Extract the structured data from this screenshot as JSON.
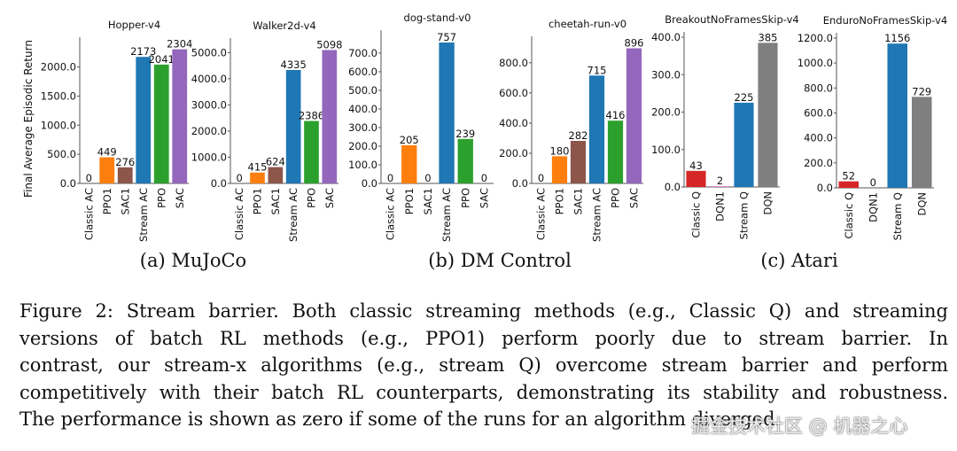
{
  "figure": {
    "ylabel": "Final Average Episodic Return",
    "subcaptions": [
      "(a) MuJoCo",
      "(b) DM Control",
      "(c) Atari"
    ],
    "caption_lines": [
      "Figure 2: Stream barrier. Both classic streaming methods (e.g., Classic Q) and streaming",
      "versions of batch RL methods (e.g., PPO1) perform poorly due to stream barrier. In",
      "contrast, our stream-x algorithms (e.g., stream Q) overcome stream barrier and perform",
      "competitively with their batch RL counterparts, demonstrating its stability and robustness.",
      "The performance is shown as zero if some of the runs for an algorithm diverged."
    ],
    "watermark": "掘金技术社区 @ 机器之心"
  },
  "colors": {
    "Classic AC": "#1f77b4",
    "PPO1": "#ff7f0e",
    "SAC1": "#8c564b",
    "Stream AC": "#1f77b4",
    "PPO": "#2ca02c",
    "SAC": "#9467bd",
    "Classic Q": "#d62728",
    "DQN1": "#e377c2",
    "Stream Q": "#1f77b4",
    "DQN": "#7f7f7f"
  },
  "chart_data": [
    {
      "type": "bar",
      "title": "Hopper-v4",
      "group": "(a) MuJoCo",
      "categories": [
        "Classic AC",
        "PPO1",
        "SAC1",
        "Stream AC",
        "PPO",
        "SAC"
      ],
      "values": [
        0,
        449,
        276,
        2173,
        2041,
        2304
      ],
      "value_labels": [
        "0",
        "449",
        "276",
        "2173",
        "2041",
        "2304"
      ],
      "yticks": [
        0,
        500,
        1000,
        1500,
        2000
      ],
      "ytick_labels": [
        "0.0",
        "500.0",
        "1000.0",
        "1500.0",
        "2000.0"
      ],
      "ylim": [
        0,
        2420
      ],
      "xlabel": "",
      "ylabel": "Final Average Episodic Return",
      "grid": false
    },
    {
      "type": "bar",
      "title": "Walker2d-v4",
      "group": "(a) MuJoCo",
      "categories": [
        "Classic AC",
        "PPO1",
        "SAC1",
        "Stream AC",
        "PPO",
        "SAC"
      ],
      "values": [
        0,
        415,
        624,
        4335,
        2386,
        5098
      ],
      "value_labels": [
        "0",
        "415",
        "624",
        "4335",
        "2386",
        "5098"
      ],
      "yticks": [
        0,
        1000,
        2000,
        3000,
        4000,
        5000
      ],
      "ytick_labels": [
        "0.0",
        "1000.0",
        "2000.0",
        "3000.0",
        "4000.0",
        "5000.0"
      ],
      "ylim": [
        0,
        5350
      ],
      "xlabel": "",
      "ylabel": "",
      "grid": false
    },
    {
      "type": "bar",
      "title": "dog-stand-v0",
      "group": "(b) DM Control",
      "categories": [
        "Classic AC",
        "PPO1",
        "SAC1",
        "Stream AC",
        "PPO",
        "SAC"
      ],
      "values": [
        0,
        205,
        0,
        757,
        239,
        0
      ],
      "value_labels": [
        "0",
        "205",
        "0",
        "757",
        "239",
        "0"
      ],
      "yticks": [
        0,
        100,
        200,
        300,
        400,
        500,
        600,
        700
      ],
      "ytick_labels": [
        "0.0",
        "100.0",
        "200.0",
        "300.0",
        "400.0",
        "500.0",
        "600.0",
        "700.0"
      ],
      "ylim": [
        0,
        795
      ],
      "xlabel": "",
      "ylabel": "",
      "grid": false
    },
    {
      "type": "bar",
      "title": "cheetah-run-v0",
      "group": "(b) DM Control",
      "categories": [
        "Classic AC",
        "PPO1",
        "SAC1",
        "Stream AC",
        "PPO",
        "SAC"
      ],
      "values": [
        0,
        180,
        282,
        715,
        416,
        896
      ],
      "value_labels": [
        "0",
        "180",
        "282",
        "715",
        "416",
        "896"
      ],
      "yticks": [
        0,
        200,
        400,
        600,
        800
      ],
      "ytick_labels": [
        "0.0",
        "200.0",
        "400.0",
        "600.0",
        "800.0"
      ],
      "ylim": [
        0,
        940
      ],
      "xlabel": "",
      "ylabel": "",
      "grid": false
    },
    {
      "type": "bar",
      "title": "BreakoutNoFramesSkip-v4",
      "group": "(c) Atari",
      "categories": [
        "Classic Q",
        "DQN1",
        "Stream Q",
        "DQN"
      ],
      "values": [
        43,
        2,
        225,
        385
      ],
      "value_labels": [
        "43",
        "2",
        "225",
        "385"
      ],
      "yticks": [
        0,
        100,
        200,
        300,
        400
      ],
      "ytick_labels": [
        "0.0",
        "100.0",
        "200.0",
        "300.0",
        "400.0"
      ],
      "ylim": [
        0,
        400
      ],
      "xlabel": "",
      "ylabel": "",
      "grid": false
    },
    {
      "type": "bar",
      "title": "EnduroNoFramesSkip-v4",
      "group": "(c) Atari",
      "categories": [
        "Classic Q",
        "DQN1",
        "Stream Q",
        "DQN"
      ],
      "values": [
        52,
        0,
        1156,
        729
      ],
      "value_labels": [
        "52",
        "0",
        "1156",
        "729"
      ],
      "yticks": [
        0,
        200,
        400,
        600,
        800,
        1000,
        1200
      ],
      "ytick_labels": [
        "0.0",
        "200.0",
        "400.0",
        "600.0",
        "800.0",
        "1000.0",
        "1200.0"
      ],
      "ylim": [
        0,
        1200
      ],
      "xlabel": "",
      "ylabel": "",
      "grid": false
    }
  ]
}
